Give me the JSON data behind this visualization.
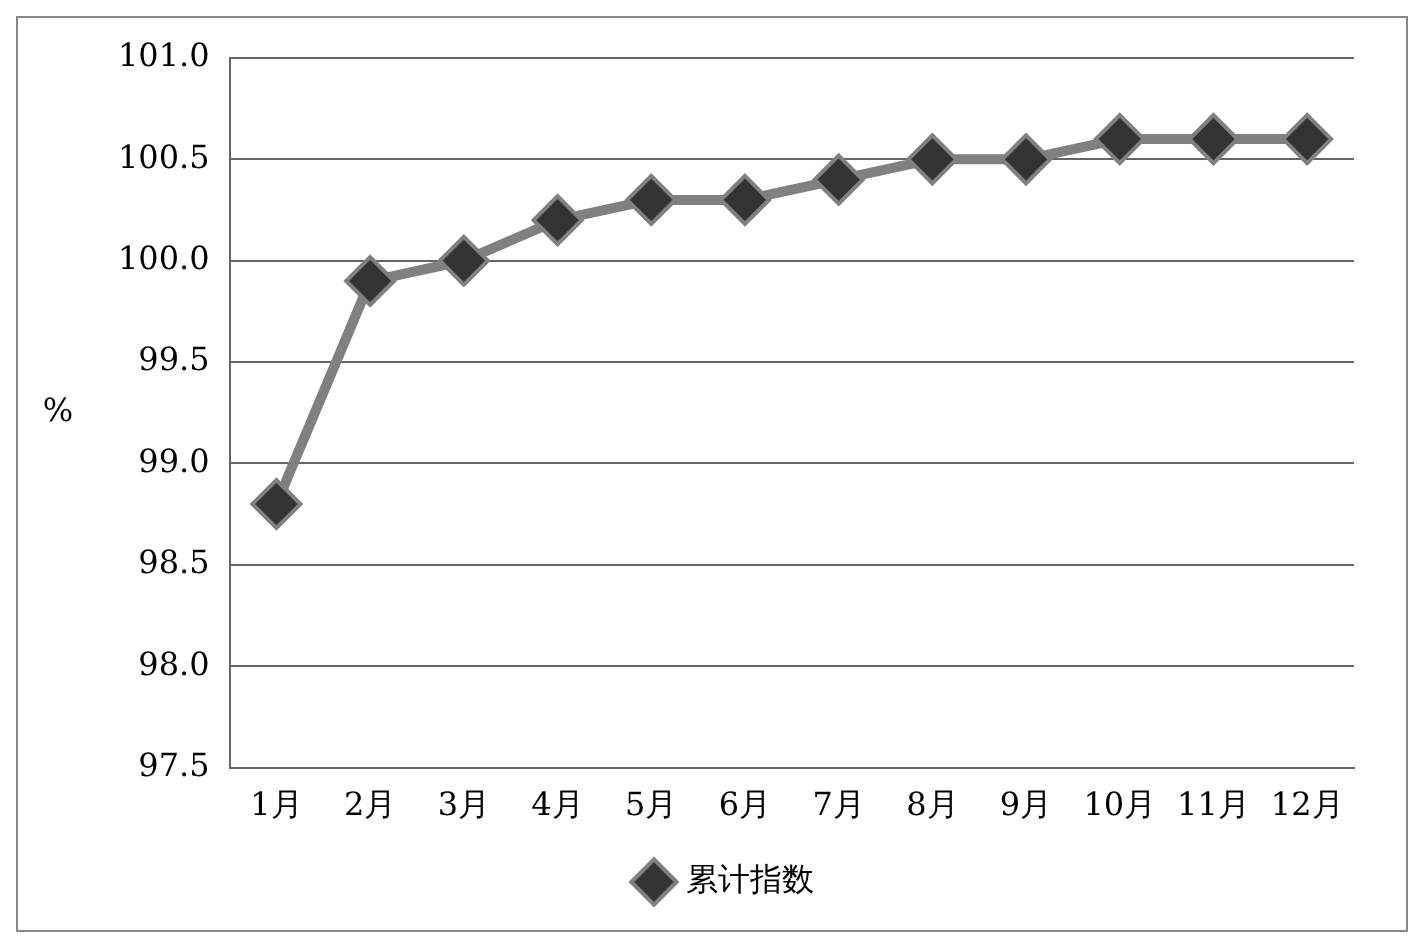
{
  "chart_data": {
    "type": "line",
    "ylabel": "%",
    "categories": [
      "1月",
      "2月",
      "3月",
      "4月",
      "5月",
      "6月",
      "7月",
      "8月",
      "9月",
      "10月",
      "11月",
      "12月"
    ],
    "series": [
      {
        "name": "累计指数",
        "color": "#808080",
        "values": [
          98.8,
          99.9,
          100.0,
          100.2,
          100.3,
          100.3,
          100.4,
          100.5,
          100.5,
          100.6,
          100.6,
          100.6
        ]
      }
    ],
    "ylim": [
      97.5,
      101.0
    ],
    "yticks": [
      {
        "value": 97.5,
        "label": "97.5"
      },
      {
        "value": 98,
        "label": "98.0"
      },
      {
        "value": 98.5,
        "label": "98.5"
      },
      {
        "value": 99,
        "label": "99.0"
      },
      {
        "value": 99.5,
        "label": "99.5"
      },
      {
        "value": 100,
        "label": "100.0"
      },
      {
        "value": 100.5,
        "label": "100.5"
      },
      {
        "value": 101,
        "label": "101.0"
      }
    ],
    "grid": "y",
    "legend": "bottom",
    "marker": "diamond",
    "line_style": "solid"
  }
}
